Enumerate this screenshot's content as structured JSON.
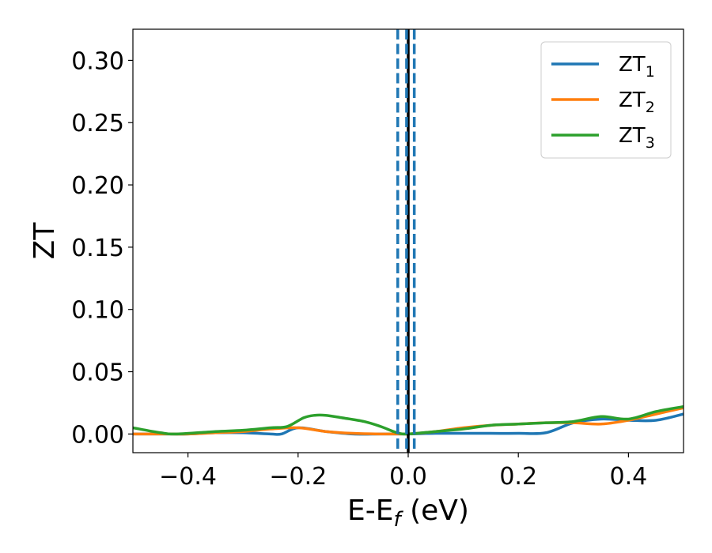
{
  "chart_data": {
    "type": "line",
    "title": "",
    "xlabel": "E-E_f (eV)",
    "ylabel": "ZT",
    "xlim": [
      -0.5,
      0.5
    ],
    "ylim": [
      -0.015,
      0.325
    ],
    "x_ticks": [
      -0.4,
      -0.2,
      0.0,
      0.2,
      0.4
    ],
    "x_tick_labels": [
      "−0.4",
      "−0.2",
      "0.0",
      "0.2",
      "0.4"
    ],
    "y_ticks": [
      0.0,
      0.05,
      0.1,
      0.15,
      0.2,
      0.25,
      0.3
    ],
    "y_tick_labels": [
      "0.00",
      "0.05",
      "0.10",
      "0.15",
      "0.20",
      "0.25",
      "0.30"
    ],
    "grid": false,
    "legend_position": "top-right",
    "colors": {
      "zt1": "#1f77b4",
      "zt2": "#ff7f0e",
      "zt3": "#2ca02c",
      "fermi": "#000000"
    },
    "series": [
      {
        "name": "ZT1",
        "color": "#1f77b4",
        "x": [
          -0.5,
          -0.45,
          -0.4,
          -0.35,
          -0.3,
          -0.25,
          -0.23,
          -0.2,
          -0.15,
          -0.1,
          -0.05,
          -0.01,
          0.0,
          0.05,
          0.1,
          0.15,
          0.2,
          0.25,
          0.3,
          0.35,
          0.4,
          0.45,
          0.5
        ],
        "y": [
          0.0,
          0.0,
          0.0,
          0.001,
          0.001,
          0.0,
          0.0,
          0.005,
          0.002,
          0.0,
          0.0,
          0.0,
          0.0,
          0.0005,
          0.0005,
          0.0005,
          0.0005,
          0.001,
          0.009,
          0.012,
          0.011,
          0.011,
          0.016
        ]
      },
      {
        "name": "ZT2",
        "color": "#ff7f0e",
        "x": [
          -0.5,
          -0.45,
          -0.4,
          -0.35,
          -0.3,
          -0.25,
          -0.2,
          -0.15,
          -0.1,
          -0.05,
          -0.01,
          0.0,
          0.05,
          0.1,
          0.15,
          0.2,
          0.25,
          0.3,
          0.35,
          0.4,
          0.45,
          0.5
        ],
        "y": [
          0.0,
          0.0,
          0.0,
          0.001,
          0.002,
          0.004,
          0.005,
          0.002,
          0.0005,
          0.0,
          0.0,
          0.0,
          0.002,
          0.005,
          0.007,
          0.008,
          0.009,
          0.009,
          0.008,
          0.011,
          0.016,
          0.021
        ]
      },
      {
        "name": "ZT3",
        "color": "#2ca02c",
        "x": [
          -0.5,
          -0.45,
          -0.42,
          -0.35,
          -0.3,
          -0.25,
          -0.22,
          -0.19,
          -0.17,
          -0.15,
          -0.12,
          -0.08,
          -0.05,
          -0.02,
          0.0,
          0.05,
          0.1,
          0.15,
          0.2,
          0.25,
          0.3,
          0.35,
          0.4,
          0.45,
          0.5
        ],
        "y": [
          0.005,
          0.001,
          0.0,
          0.002,
          0.003,
          0.005,
          0.006,
          0.013,
          0.015,
          0.015,
          0.013,
          0.01,
          0.006,
          0.001,
          0.0,
          0.002,
          0.004,
          0.007,
          0.008,
          0.009,
          0.01,
          0.014,
          0.012,
          0.018,
          0.022
        ]
      }
    ],
    "vertical_lines": [
      {
        "x": 0.0,
        "color": "#000000",
        "style": "solid"
      },
      {
        "x": -0.019,
        "color": "#1f77b4",
        "style": "dashed"
      },
      {
        "x": -0.003,
        "color": "#1f77b4",
        "style": "dashed"
      },
      {
        "x": 0.011,
        "color": "#1f77b4",
        "style": "dashed"
      }
    ]
  }
}
